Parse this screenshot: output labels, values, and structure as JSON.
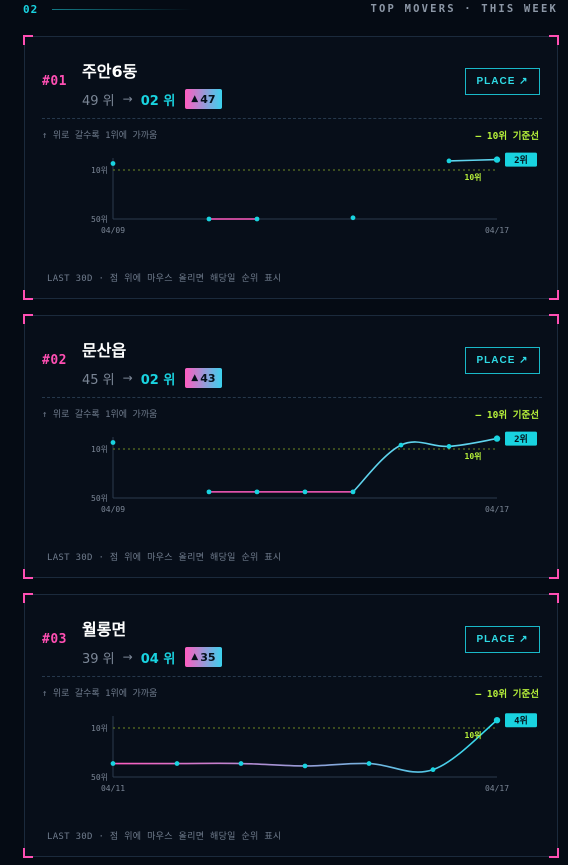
{
  "header": {
    "section_number": "02",
    "title": "TOP MOVERS · THIS WEEK"
  },
  "common": {
    "hint": "↑ 위로 갈수록 1위에 가까움",
    "legend": "— 10위 기준선",
    "footer": "LAST 30D · 점 위에 마우스 올리면 해당일 순위 표시",
    "place_label": "PLACE ↗",
    "colors": {
      "accent_pink": "#ff4fb3",
      "accent_cyan": "#19d3e0",
      "threshold": "#b6f03a"
    },
    "icons": {
      "place": "arrow-up-right-icon",
      "badge": "triangle-up-icon"
    }
  },
  "cards": [
    {
      "rank": "#01",
      "name": "주안6동",
      "from_rank": "49 위",
      "arrow": "→",
      "to_rank": "02 위",
      "change": "47",
      "chart_data": {
        "type": "line",
        "y_axis": {
          "top_label": "10위",
          "bottom_label": "50위",
          "scale": "rank, inverted"
        },
        "x_labels": [
          "04/09",
          "04/17"
        ],
        "threshold": {
          "rank": 10,
          "label": "10위"
        },
        "end_label": "2위",
        "points": [
          {
            "day": 0,
            "rank": 5
          },
          {
            "day": 2,
            "rank": 50
          },
          {
            "day": 3,
            "rank": 50
          },
          {
            "day": 5,
            "rank": 49
          },
          {
            "day": 7,
            "rank": 3
          },
          {
            "day": 8,
            "rank": 2
          }
        ],
        "segments": [
          {
            "from": 1,
            "to": 2,
            "color": "pink"
          },
          {
            "from": 4,
            "to": 5,
            "color": "cyan"
          }
        ]
      }
    },
    {
      "rank": "#02",
      "name": "문산읍",
      "from_rank": "45 위",
      "arrow": "→",
      "to_rank": "02 위",
      "change": "43",
      "chart_data": {
        "type": "line",
        "y_axis": {
          "top_label": "10위",
          "bottom_label": "50위",
          "scale": "rank, inverted"
        },
        "x_labels": [
          "04/09",
          "04/17"
        ],
        "threshold": {
          "rank": 10,
          "label": "10위"
        },
        "end_label": "2위",
        "points": [
          {
            "day": 0,
            "rank": 5
          },
          {
            "day": 2,
            "rank": 45
          },
          {
            "day": 3,
            "rank": 45
          },
          {
            "day": 4,
            "rank": 45
          },
          {
            "day": 5,
            "rank": 45
          },
          {
            "day": 6,
            "rank": 7
          },
          {
            "day": 7,
            "rank": 8
          },
          {
            "day": 8,
            "rank": 2
          }
        ],
        "segments": [
          {
            "from": 1,
            "to": 4,
            "color": "pink"
          },
          {
            "from": 4,
            "to": 7,
            "color": "cyan"
          }
        ]
      }
    },
    {
      "rank": "#03",
      "name": "월롱면",
      "from_rank": "39 위",
      "arrow": "→",
      "to_rank": "04 위",
      "change": "35",
      "chart_data": {
        "type": "line",
        "y_axis": {
          "top_label": "10위",
          "bottom_label": "50위",
          "scale": "rank, inverted"
        },
        "x_labels": [
          "04/11",
          "04/17"
        ],
        "threshold": {
          "rank": 10,
          "label": "10위"
        },
        "end_label": "4위",
        "points": [
          {
            "day": 0,
            "rank": 39
          },
          {
            "day": 1,
            "rank": 39
          },
          {
            "day": 2,
            "rank": 39
          },
          {
            "day": 3,
            "rank": 41
          },
          {
            "day": 4,
            "rank": 39
          },
          {
            "day": 5,
            "rank": 44
          },
          {
            "day": 6,
            "rank": 4
          }
        ],
        "segments": [
          {
            "from": 0,
            "to": 6,
            "color": "gradient"
          }
        ]
      }
    }
  ]
}
